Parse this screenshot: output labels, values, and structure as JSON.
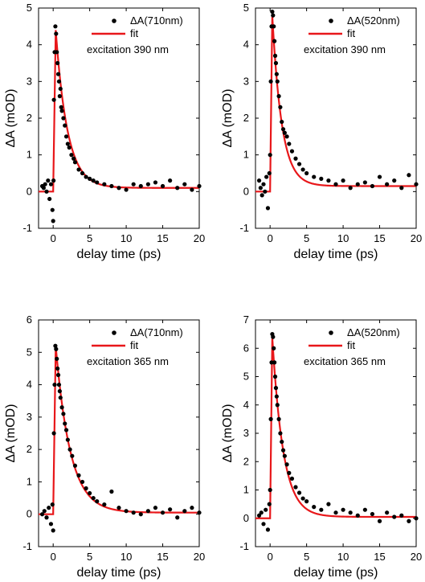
{
  "chart_data": [
    {
      "type": "scatter",
      "panel": "top-left",
      "xlabel": "delay time (ps)",
      "ylabel": "ΔA (mOD)",
      "xlim": [
        -2,
        20
      ],
      "ylim": [
        -1,
        5
      ],
      "xticks": [
        "0",
        "5",
        "10",
        "15",
        "20"
      ],
      "yticks": [
        "-1",
        "0",
        "1",
        "2",
        "3",
        "4",
        "5"
      ],
      "legend": {
        "placement": "top-right",
        "data_label": "ΔA(710nm)",
        "fit_label": "fit",
        "note": "excitation 390 nm"
      },
      "colors": {
        "data": "#000000",
        "fit": "#e8171a"
      },
      "fit": {
        "peak_x": 0.35,
        "peak": 4.4,
        "tau": 1.6,
        "offset": 0.1
      },
      "series": [
        {
          "name": "ΔA(710nm)",
          "x": [
            -1.5,
            -1.3,
            -1.1,
            -0.9,
            -0.7,
            -0.5,
            -0.3,
            -0.1,
            0.0,
            0.05,
            0.1,
            0.2,
            0.3,
            0.4,
            0.5,
            0.6,
            0.7,
            0.8,
            0.9,
            1.0,
            1.1,
            1.2,
            1.4,
            1.6,
            1.8,
            2.0,
            2.2,
            2.5,
            2.8,
            3.0,
            3.5,
            4.0,
            4.5,
            5.0,
            5.5,
            6.0,
            7.0,
            8.0,
            9.0,
            10.0,
            11.0,
            12.0,
            13.0,
            14.0,
            15.0,
            16.0,
            17.0,
            18.0,
            19.0,
            20.0
          ],
          "y": [
            0.15,
            0.1,
            0.2,
            0.0,
            0.3,
            -0.2,
            0.2,
            -0.5,
            -0.8,
            0.3,
            2.5,
            3.8,
            4.5,
            4.3,
            3.8,
            3.5,
            3.2,
            3.0,
            2.6,
            2.8,
            2.3,
            2.2,
            2.0,
            1.8,
            1.5,
            1.3,
            1.2,
            1.0,
            0.9,
            0.8,
            0.6,
            0.5,
            0.4,
            0.35,
            0.3,
            0.25,
            0.2,
            0.15,
            0.1,
            0.05,
            0.2,
            0.15,
            0.2,
            0.25,
            0.15,
            0.3,
            0.1,
            0.2,
            0.05,
            0.15
          ]
        }
      ]
    },
    {
      "type": "scatter",
      "panel": "top-right",
      "xlabel": "delay time (ps)",
      "ylabel": "ΔA (mOD)",
      "xlim": [
        -2,
        20
      ],
      "ylim": [
        -1,
        5
      ],
      "xticks": [
        "0",
        "5",
        "10",
        "15",
        "20"
      ],
      "yticks": [
        "-1",
        "0",
        "1",
        "2",
        "3",
        "4",
        "5"
      ],
      "legend": {
        "placement": "top-right",
        "data_label": "ΔA(520nm)",
        "fit_label": "fit",
        "note": "excitation 390 nm"
      },
      "colors": {
        "data": "#000000",
        "fit": "#e8171a"
      },
      "fit": {
        "peak_x": 0.3,
        "peak": 4.8,
        "tau": 1.3,
        "offset": 0.15
      },
      "series": [
        {
          "name": "ΔA(520nm)",
          "x": [
            -1.5,
            -1.3,
            -1.1,
            -0.9,
            -0.7,
            -0.5,
            -0.3,
            -0.1,
            0.0,
            0.1,
            0.2,
            0.3,
            0.4,
            0.5,
            0.6,
            0.7,
            0.8,
            0.9,
            1.0,
            1.2,
            1.4,
            1.6,
            1.8,
            2.0,
            2.3,
            2.6,
            3.0,
            3.5,
            4.0,
            4.5,
            5.0,
            6.0,
            7.0,
            8.0,
            9.0,
            10.0,
            11.0,
            12.0,
            13.0,
            14.0,
            15.0,
            16.0,
            17.0,
            18.0,
            19.0,
            20.0
          ],
          "y": [
            0.3,
            0.1,
            -0.1,
            0.2,
            0.0,
            0.4,
            -0.45,
            0.5,
            1.0,
            3.0,
            4.5,
            4.9,
            4.8,
            4.5,
            4.1,
            3.7,
            3.5,
            3.2,
            3.0,
            2.6,
            2.3,
            1.9,
            1.7,
            1.6,
            1.5,
            1.3,
            1.1,
            0.9,
            0.75,
            0.6,
            0.5,
            0.4,
            0.35,
            0.3,
            0.2,
            0.3,
            0.1,
            0.2,
            0.25,
            0.15,
            0.4,
            0.2,
            0.3,
            0.1,
            0.45,
            0.2
          ]
        }
      ]
    },
    {
      "type": "scatter",
      "panel": "bottom-left",
      "xlabel": "delay time (ps)",
      "ylabel": "ΔA (mOD)",
      "xlim": [
        -2,
        20
      ],
      "ylim": [
        -1,
        6
      ],
      "xticks": [
        "0",
        "5",
        "10",
        "15",
        "20"
      ],
      "yticks": [
        "-1",
        "0",
        "1",
        "2",
        "3",
        "4",
        "5",
        "6"
      ],
      "legend": {
        "placement": "top-right",
        "data_label": "ΔA(710nm)",
        "fit_label": "fit",
        "note": "excitation 365 nm"
      },
      "colors": {
        "data": "#000000",
        "fit": "#e8171a"
      },
      "fit": {
        "peak_x": 0.35,
        "peak": 5.2,
        "tau": 2.0,
        "offset": 0.05
      },
      "series": [
        {
          "name": "ΔA(710nm)",
          "x": [
            -1.5,
            -1.2,
            -0.9,
            -0.6,
            -0.3,
            -0.1,
            0.0,
            0.1,
            0.2,
            0.3,
            0.4,
            0.5,
            0.6,
            0.7,
            0.8,
            0.9,
            1.0,
            1.2,
            1.4,
            1.6,
            1.8,
            2.0,
            2.3,
            2.6,
            3.0,
            3.5,
            4.0,
            4.5,
            5.0,
            5.5,
            6.0,
            7.0,
            8.0,
            9.0,
            10.0,
            11.0,
            12.0,
            13.0,
            14.0,
            15.0,
            16.0,
            17.0,
            18.0,
            19.0,
            20.0
          ],
          "y": [
            0.0,
            0.1,
            -0.1,
            0.2,
            -0.3,
            0.3,
            -0.5,
            2.5,
            4.0,
            5.2,
            5.1,
            4.8,
            4.5,
            4.3,
            4.0,
            3.8,
            3.6,
            3.3,
            3.1,
            2.8,
            2.6,
            2.3,
            2.0,
            1.8,
            1.5,
            1.2,
            1.0,
            0.8,
            0.65,
            0.5,
            0.4,
            0.3,
            0.7,
            0.2,
            0.1,
            0.05,
            0.0,
            0.1,
            0.2,
            0.05,
            0.15,
            -0.1,
            0.1,
            0.2,
            0.05
          ]
        }
      ]
    },
    {
      "type": "scatter",
      "panel": "bottom-right",
      "xlabel": "delay time (ps)",
      "ylabel": "ΔA (mOD)",
      "xlim": [
        -2,
        20
      ],
      "ylim": [
        -1,
        7
      ],
      "xticks": [
        "0",
        "5",
        "10",
        "15",
        "20"
      ],
      "yticks": [
        "-1",
        "0",
        "1",
        "2",
        "3",
        "4",
        "5",
        "6",
        "7"
      ],
      "legend": {
        "placement": "top-right",
        "data_label": "ΔA(520nm)",
        "fit_label": "fit",
        "note": "excitation 365 nm"
      },
      "colors": {
        "data": "#000000",
        "fit": "#e8171a"
      },
      "fit": {
        "peak_x": 0.3,
        "peak": 6.4,
        "tau": 1.5,
        "offset": 0.05
      },
      "series": [
        {
          "name": "ΔA(520nm)",
          "x": [
            -1.5,
            -1.2,
            -0.9,
            -0.6,
            -0.3,
            -0.1,
            0.0,
            0.1,
            0.2,
            0.3,
            0.4,
            0.5,
            0.6,
            0.7,
            0.8,
            0.9,
            1.0,
            1.2,
            1.4,
            1.6,
            1.8,
            2.0,
            2.3,
            2.6,
            3.0,
            3.5,
            4.0,
            4.5,
            5.0,
            6.0,
            7.0,
            8.0,
            9.0,
            10.0,
            11.0,
            12.0,
            13.0,
            14.0,
            15.0,
            16.0,
            17.0,
            18.0,
            19.0,
            20.0
          ],
          "y": [
            0.1,
            0.2,
            -0.2,
            0.3,
            -0.4,
            0.5,
            1.0,
            3.5,
            5.5,
            6.5,
            6.4,
            6.0,
            5.5,
            5.0,
            4.6,
            4.3,
            4.0,
            3.5,
            3.0,
            2.7,
            2.4,
            2.2,
            1.9,
            1.6,
            1.4,
            1.1,
            0.9,
            0.7,
            0.6,
            0.4,
            0.3,
            0.5,
            0.2,
            0.3,
            0.2,
            0.1,
            0.3,
            0.15,
            -0.1,
            0.2,
            0.05,
            0.1,
            -0.1,
            0.0
          ]
        }
      ]
    }
  ]
}
